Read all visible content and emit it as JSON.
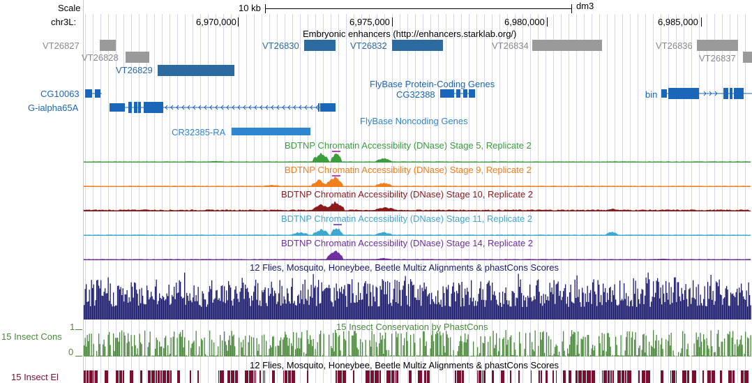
{
  "ruler": {
    "scale_label": "Scale",
    "chrom_label": "chr3L:",
    "scalebar_label": "10 kb",
    "assembly": "dm3",
    "positions": [
      "6,970,000",
      "6,975,000",
      "6,980,000",
      "6,985,000"
    ]
  },
  "tracks": {
    "enhancers": {
      "title": "Embryonic enhancers (http://enhancers.starklab.org/)",
      "items": [
        "VT26827",
        "VT26828",
        "VT26829",
        "VT26830",
        "VT26832",
        "VT26834",
        "VT26836",
        "VT26837"
      ]
    },
    "protein_coding": {
      "title": "FlyBase Protein-Coding Genes",
      "genes": [
        "CG10063",
        "G-ialpha65A",
        "CG32388",
        "bin"
      ]
    },
    "noncoding": {
      "title": "FlyBase Noncoding Genes",
      "genes": [
        "CR32385-RA"
      ]
    },
    "dnase": [
      {
        "title": "BDTNP Chromatin Accessibility (DNase) Stage 5, Replicate 2",
        "color": "#3a9e3a"
      },
      {
        "title": "BDTNP Chromatin Accessibility (DNase) Stage 9, Replicate 2",
        "color": "#f07f1e"
      },
      {
        "title": "BDTNP Chromatin Accessibility (DNase) Stage 10, Replicate 2",
        "color": "#8b1a1a"
      },
      {
        "title": "BDTNP Chromatin Accessibility (DNase) Stage 11, Replicate 2",
        "color": "#3fa8d0"
      },
      {
        "title": "BDTNP Chromatin Accessibility (DNase) Stage 14, Replicate 2",
        "color": "#6f2fa0"
      }
    ],
    "multiz": {
      "title": "12 Flies, Mosquito, Honeybee, Beetle Multiz Alignments & phastCons Scores",
      "color": "#1a1a6e"
    },
    "phastcons": {
      "title": "15 Insect Conservation by PhastCons",
      "side_label": "15 Insect Cons",
      "ymax": "1",
      "ymin": "0",
      "color": "#4a8a3a"
    },
    "elements": {
      "title": "12 Flies, Mosquito, Honeybee, Beetle Multiz Alignments & phastCons Scores",
      "side_label": "15 Insect El",
      "color": "#7a1030"
    }
  },
  "colors": {
    "gene_blue": "#1a66b8",
    "noncoding_blue": "#2f86d0",
    "enh_blue": "#2c6aa0",
    "enh_gray": "#9a9a9a",
    "label_gray": "#8a8a8a"
  }
}
